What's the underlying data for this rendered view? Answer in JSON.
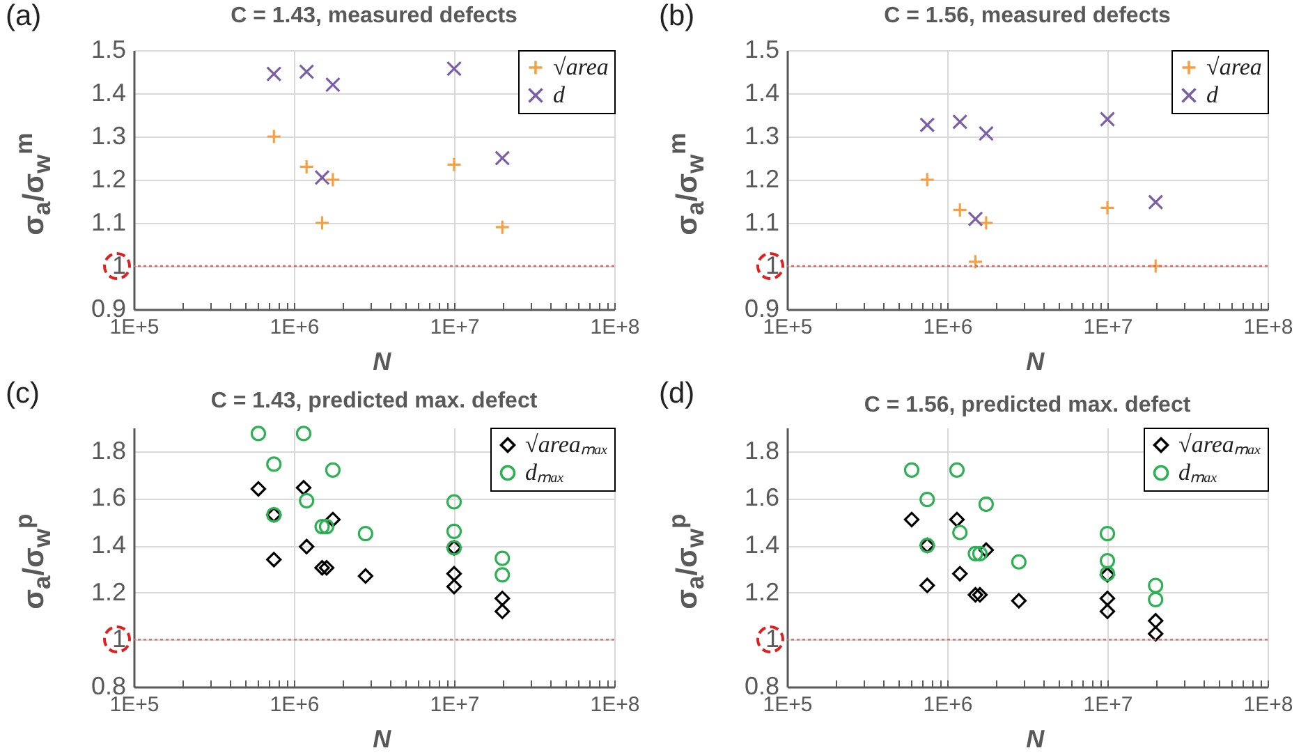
{
  "chart_data": [
    {
      "type": "scatter",
      "title": "C = 1.43, measured defects",
      "annotations": [
        "(a)"
      ],
      "xlabel": "N",
      "ylabel": "σ$_{a}$/σ$_{w}$$^{m}$",
      "log": "x",
      "grid": true,
      "legend": "top right",
      "xlim": [
        100000,
        100000000
      ],
      "ylim": [
        0.9,
        1.5
      ],
      "yticks": [
        0.9,
        1,
        1.1,
        1.2,
        1.3,
        1.4,
        1.5
      ],
      "xticks": [
        {
          "value": 100000,
          "label": "1E+5"
        },
        {
          "value": 200000,
          "label": null
        },
        {
          "value": 300000,
          "label": null
        },
        {
          "value": 400000,
          "label": null
        },
        {
          "value": 500000,
          "label": null
        },
        {
          "value": 600000,
          "label": null
        },
        {
          "value": 700000,
          "label": null
        },
        {
          "value": 800000,
          "label": null
        },
        {
          "value": 900000,
          "label": null
        },
        {
          "value": 1000000,
          "label": "1E+6"
        },
        {
          "value": 2000000,
          "label": null
        },
        {
          "value": 3000000,
          "label": null
        },
        {
          "value": 4000000,
          "label": null
        },
        {
          "value": 5000000,
          "label": null
        },
        {
          "value": 6000000,
          "label": null
        },
        {
          "value": 7000000,
          "label": null
        },
        {
          "value": 8000000,
          "label": null
        },
        {
          "value": 9000000,
          "label": null
        },
        {
          "value": 10000000,
          "label": "1E+7"
        },
        {
          "value": 20000000,
          "label": null
        },
        {
          "value": 30000000,
          "label": null
        },
        {
          "value": 40000000,
          "label": null
        },
        {
          "value": 50000000,
          "label": null
        },
        {
          "value": 60000000,
          "label": null
        },
        {
          "value": 70000000,
          "label": null
        },
        {
          "value": 80000000,
          "label": null
        },
        {
          "value": 90000000,
          "label": null
        },
        {
          "value": 100000000,
          "label": "1E+8"
        }
      ],
      "ref_lines": [
        {
          "axis": "y",
          "value": 1,
          "color": "#e06666",
          "line_style": "dotted"
        }
      ],
      "series": [
        {
          "name": "√area",
          "color": "#f5a043",
          "marker": "cross",
          "x": [
            750000,
            1200000,
            1500000,
            1750000,
            10000000,
            20000000
          ],
          "values": [
            1.3,
            1.23,
            1.1,
            1.2,
            1.235,
            1.09
          ]
        },
        {
          "name": "d",
          "color": "#7a5fa6",
          "marker": "x",
          "x": [
            750000,
            1200000,
            1500000,
            1750000,
            10000000,
            20000000
          ],
          "values": [
            1.445,
            1.45,
            1.205,
            1.42,
            1.457,
            1.25
          ]
        }
      ]
    },
    {
      "type": "scatter",
      "title": "C = 1.56, measured defects",
      "annotations": [
        "(b)"
      ],
      "xlabel": "N",
      "ylabel": "σ$_{a}$/σ$_{w}$$^{m}$",
      "log": "x",
      "grid": true,
      "legend": "top right",
      "xlim": [
        100000,
        100000000
      ],
      "ylim": [
        0.9,
        1.5
      ],
      "yticks": [
        0.9,
        1,
        1.1,
        1.2,
        1.3,
        1.4,
        1.5
      ],
      "xticks": [
        {
          "value": 100000,
          "label": "1E+5"
        },
        {
          "value": 200000,
          "label": null
        },
        {
          "value": 300000,
          "label": null
        },
        {
          "value": 400000,
          "label": null
        },
        {
          "value": 500000,
          "label": null
        },
        {
          "value": 600000,
          "label": null
        },
        {
          "value": 700000,
          "label": null
        },
        {
          "value": 800000,
          "label": null
        },
        {
          "value": 900000,
          "label": null
        },
        {
          "value": 1000000,
          "label": "1E+6"
        },
        {
          "value": 2000000,
          "label": null
        },
        {
          "value": 3000000,
          "label": null
        },
        {
          "value": 4000000,
          "label": null
        },
        {
          "value": 5000000,
          "label": null
        },
        {
          "value": 6000000,
          "label": null
        },
        {
          "value": 7000000,
          "label": null
        },
        {
          "value": 8000000,
          "label": null
        },
        {
          "value": 9000000,
          "label": null
        },
        {
          "value": 10000000,
          "label": "1E+7"
        },
        {
          "value": 20000000,
          "label": null
        },
        {
          "value": 30000000,
          "label": null
        },
        {
          "value": 40000000,
          "label": null
        },
        {
          "value": 50000000,
          "label": null
        },
        {
          "value": 60000000,
          "label": null
        },
        {
          "value": 70000000,
          "label": null
        },
        {
          "value": 80000000,
          "label": null
        },
        {
          "value": 90000000,
          "label": null
        },
        {
          "value": 100000000,
          "label": "1E+8"
        }
      ],
      "ref_lines": [
        {
          "axis": "y",
          "value": 1,
          "color": "#e06666",
          "line_style": "dotted"
        }
      ],
      "series": [
        {
          "name": "√area",
          "color": "#f5a043",
          "marker": "cross",
          "x": [
            750000,
            1200000,
            1500000,
            1750000,
            10000000,
            20000000
          ],
          "values": [
            1.2,
            1.13,
            1.01,
            1.1,
            1.135,
            1.0
          ]
        },
        {
          "name": "d",
          "color": "#7a5fa6",
          "marker": "x",
          "x": [
            750000,
            1200000,
            1500000,
            1750000,
            10000000,
            20000000
          ],
          "values": [
            1.327,
            1.334,
            1.109,
            1.307,
            1.34,
            1.148
          ]
        }
      ]
    },
    {
      "type": "scatter",
      "title": "C = 1.43, predicted max. defect",
      "annotations": [
        "(c)"
      ],
      "xlabel": "N",
      "ylabel": "σ$_{a}$/σ$_{w}$$^{p}$",
      "log": "x",
      "grid": true,
      "legend": "top right",
      "xlim": [
        100000,
        100000000
      ],
      "ylim": [
        0.8,
        1.9
      ],
      "yticks": [
        0.8,
        1,
        1.2,
        1.4,
        1.6,
        1.8
      ],
      "xticks": [
        {
          "value": 100000,
          "label": "1E+5"
        },
        {
          "value": 200000,
          "label": null
        },
        {
          "value": 300000,
          "label": null
        },
        {
          "value": 400000,
          "label": null
        },
        {
          "value": 500000,
          "label": null
        },
        {
          "value": 600000,
          "label": null
        },
        {
          "value": 700000,
          "label": null
        },
        {
          "value": 800000,
          "label": null
        },
        {
          "value": 900000,
          "label": null
        },
        {
          "value": 1000000,
          "label": "1E+6"
        },
        {
          "value": 2000000,
          "label": null
        },
        {
          "value": 3000000,
          "label": null
        },
        {
          "value": 4000000,
          "label": null
        },
        {
          "value": 5000000,
          "label": null
        },
        {
          "value": 6000000,
          "label": null
        },
        {
          "value": 7000000,
          "label": null
        },
        {
          "value": 8000000,
          "label": null
        },
        {
          "value": 9000000,
          "label": null
        },
        {
          "value": 10000000,
          "label": "1E+7"
        },
        {
          "value": 20000000,
          "label": null
        },
        {
          "value": 30000000,
          "label": null
        },
        {
          "value": 40000000,
          "label": null
        },
        {
          "value": 50000000,
          "label": null
        },
        {
          "value": 60000000,
          "label": null
        },
        {
          "value": 70000000,
          "label": null
        },
        {
          "value": 80000000,
          "label": null
        },
        {
          "value": 90000000,
          "label": null
        },
        {
          "value": 100000000,
          "label": "1E+8"
        }
      ],
      "ref_lines": [
        {
          "axis": "y",
          "value": 1,
          "color": "#e06666",
          "line_style": "dotted"
        }
      ],
      "series": [
        {
          "name": "√areaₘₐₓ",
          "color": "#000000",
          "marker": "diamond",
          "x": [
            600000,
            750000,
            750000,
            1150000,
            1200000,
            1500000,
            1600000,
            1750000,
            2800000,
            10000000,
            10000000,
            10000000,
            20000000,
            20000000
          ],
          "values": [
            1.64,
            1.53,
            1.34,
            1.645,
            1.395,
            1.305,
            1.305,
            1.51,
            1.27,
            1.39,
            1.28,
            1.225,
            1.175,
            1.12
          ]
        },
        {
          "name": "dₘₐₓ",
          "color": "#2eb054",
          "marker": "circle",
          "x": [
            600000,
            750000,
            750000,
            1150000,
            1200000,
            1500000,
            1600000,
            1750000,
            2800000,
            10000000,
            10000000,
            10000000,
            20000000,
            20000000
          ],
          "values": [
            1.875,
            1.745,
            1.53,
            1.875,
            1.59,
            1.48,
            1.48,
            1.72,
            1.45,
            1.585,
            1.46,
            1.39,
            1.345,
            1.275
          ]
        }
      ]
    },
    {
      "type": "scatter",
      "title": "C = 1.56, predicted max. defect",
      "annotations": [
        "(d)"
      ],
      "xlabel": "N",
      "ylabel": "σ$_{a}$/σ$_{w}$$^{p}$",
      "log": "x",
      "grid": true,
      "legend": "top right",
      "xlim": [
        100000,
        100000000
      ],
      "ylim": [
        0.8,
        1.9
      ],
      "yticks": [
        0.8,
        1,
        1.2,
        1.4,
        1.6,
        1.8
      ],
      "xticks": [
        {
          "value": 100000,
          "label": "1E+5"
        },
        {
          "value": 200000,
          "label": null
        },
        {
          "value": 300000,
          "label": null
        },
        {
          "value": 400000,
          "label": null
        },
        {
          "value": 500000,
          "label": null
        },
        {
          "value": 600000,
          "label": null
        },
        {
          "value": 700000,
          "label": null
        },
        {
          "value": 800000,
          "label": null
        },
        {
          "value": 900000,
          "label": null
        },
        {
          "value": 1000000,
          "label": "1E+6"
        },
        {
          "value": 2000000,
          "label": null
        },
        {
          "value": 3000000,
          "label": null
        },
        {
          "value": 4000000,
          "label": null
        },
        {
          "value": 5000000,
          "label": null
        },
        {
          "value": 6000000,
          "label": null
        },
        {
          "value": 7000000,
          "label": null
        },
        {
          "value": 8000000,
          "label": null
        },
        {
          "value": 9000000,
          "label": null
        },
        {
          "value": 10000000,
          "label": "1E+7"
        },
        {
          "value": 20000000,
          "label": null
        },
        {
          "value": 30000000,
          "label": null
        },
        {
          "value": 40000000,
          "label": null
        },
        {
          "value": 50000000,
          "label": null
        },
        {
          "value": 60000000,
          "label": null
        },
        {
          "value": 70000000,
          "label": null
        },
        {
          "value": 80000000,
          "label": null
        },
        {
          "value": 90000000,
          "label": null
        },
        {
          "value": 100000000,
          "label": "1E+8"
        }
      ],
      "ref_lines": [
        {
          "axis": "y",
          "value": 1,
          "color": "#e06666",
          "line_style": "dotted"
        }
      ],
      "series": [
        {
          "name": "√areaₘₐₓ",
          "color": "#000000",
          "marker": "diamond",
          "x": [
            600000,
            750000,
            750000,
            1150000,
            1200000,
            1500000,
            1600000,
            1750000,
            2800000,
            10000000,
            10000000,
            10000000,
            20000000,
            20000000
          ],
          "values": [
            1.51,
            1.4,
            1.23,
            1.51,
            1.28,
            1.19,
            1.19,
            1.38,
            1.165,
            1.275,
            1.175,
            1.12,
            1.08,
            1.025
          ]
        },
        {
          "name": "dₘₐₓ",
          "color": "#2eb054",
          "marker": "circle",
          "x": [
            600000,
            750000,
            750000,
            1150000,
            1200000,
            1500000,
            1600000,
            1750000,
            2800000,
            10000000,
            10000000,
            10000000,
            20000000,
            20000000
          ],
          "values": [
            1.72,
            1.595,
            1.4,
            1.72,
            1.455,
            1.365,
            1.365,
            1.575,
            1.33,
            1.45,
            1.335,
            1.28,
            1.23,
            1.17
          ]
        }
      ]
    }
  ]
}
